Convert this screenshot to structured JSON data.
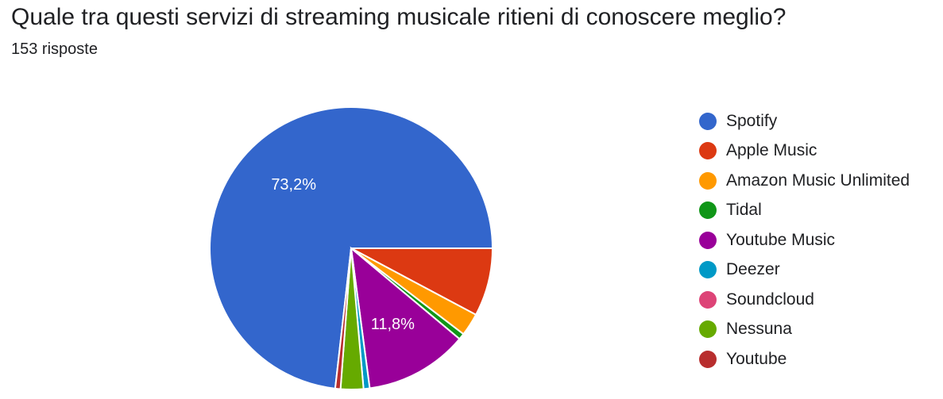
{
  "chart_data": {
    "type": "pie",
    "title": "Quale tra questi servizi di streaming musicale ritieni di conoscere meglio?",
    "subtitle": "153 risposte",
    "legend_position": "right",
    "slices": [
      {
        "name": "Spotify",
        "value": 73.2,
        "color": "#3366cc",
        "label": "73,2%"
      },
      {
        "name": "Apple Music",
        "value": 7.8,
        "color": "#dc3912",
        "label": ""
      },
      {
        "name": "Amazon Music Unlimited",
        "value": 2.6,
        "color": "#ff9900",
        "label": ""
      },
      {
        "name": "Tidal",
        "value": 0.7,
        "color": "#109618",
        "label": ""
      },
      {
        "name": "Youtube Music",
        "value": 11.8,
        "color": "#990099",
        "label": "11,8%"
      },
      {
        "name": "Deezer",
        "value": 0.7,
        "color": "#0099c6",
        "label": ""
      },
      {
        "name": "Soundcloud",
        "value": 0,
        "color": "#dd4477",
        "label": ""
      },
      {
        "name": "Nessuna",
        "value": 2.6,
        "color": "#66aa00",
        "label": ""
      },
      {
        "name": "Youtube",
        "value": 0.6,
        "color": "#b82e2e",
        "label": ""
      }
    ]
  }
}
